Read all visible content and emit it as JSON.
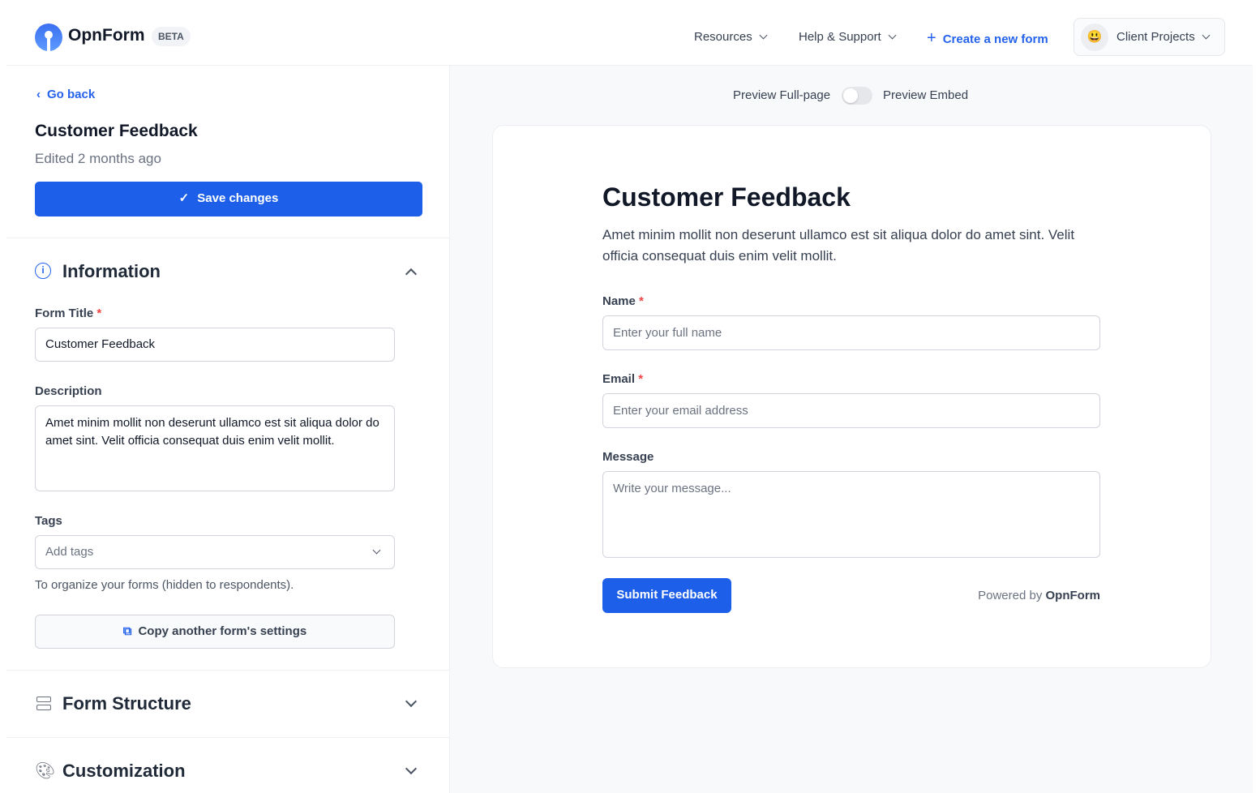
{
  "header": {
    "brand": "OpnForm",
    "badge": "BETA",
    "resources": "Resources",
    "help": "Help & Support",
    "create": "Create a new form",
    "workspace": "Client Projects",
    "workspace_emoji": "😃"
  },
  "sidebar": {
    "go_back": "Go back",
    "title": "Customer Feedback",
    "edited": "Edited 2 months ago",
    "save": "Save changes",
    "information": {
      "heading": "Information",
      "form_title_label": "Form Title",
      "form_title_value": "Customer Feedback",
      "description_label": "Description",
      "description_value": "Amet minim mollit non deserunt ullamco est sit aliqua dolor do amet sint. Velit officia consequat duis enim velit mollit.",
      "tags_label": "Tags",
      "tags_placeholder": "Add tags",
      "tags_help": "To organize your forms (hidden to respondents).",
      "copy_settings": "Copy another form's settings"
    },
    "form_structure": "Form Structure",
    "customization": "Customization"
  },
  "preview": {
    "full_page": "Preview Full-page",
    "embed": "Preview Embed",
    "embed_enabled": false,
    "form": {
      "title": "Customer Feedback",
      "description": "Amet minim mollit non deserunt ullamco est sit aliqua dolor do amet sint. Velit officia consequat duis enim velit mollit.",
      "name_label": "Name",
      "name_placeholder": "Enter your full name",
      "email_label": "Email",
      "email_placeholder": "Enter your email address",
      "message_label": "Message",
      "message_placeholder": "Write your message...",
      "required_mark": "*",
      "submit": "Submit Feedback",
      "powered_by": "Powered by",
      "powered_brand": "OpnForm"
    }
  },
  "colors": {
    "accent": "#1d5fe8",
    "required": "#ef4444"
  }
}
